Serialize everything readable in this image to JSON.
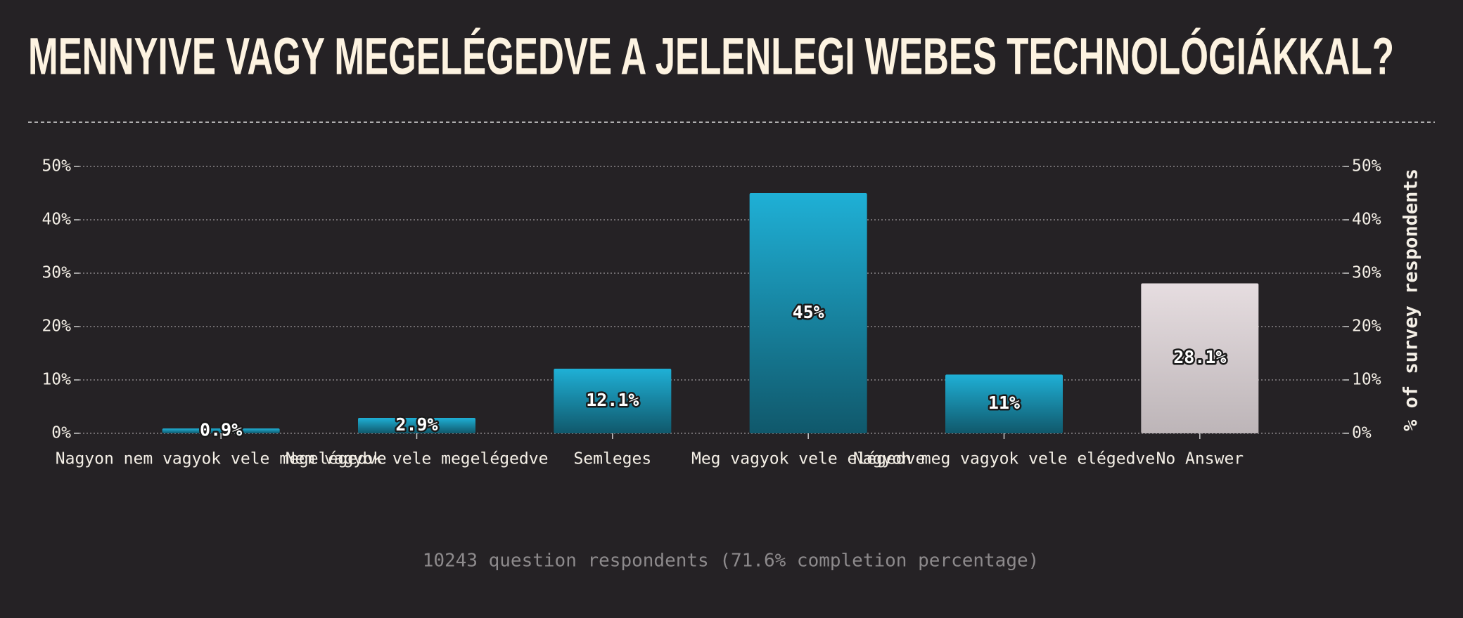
{
  "chart_data": {
    "type": "bar",
    "title": "MENNYIVE VAGY MEGELÉGEDVE A JELENLEGI WEBES TECHNOLÓGIÁKKAL?",
    "categories": [
      "Nagyon nem vagyok vele megelégedve",
      "Nem vagyok vele megelégedve",
      "Semleges",
      "Meg vagyok vele elégedve",
      "Nagyon meg vagyok vele elégedve",
      "No Answer"
    ],
    "values": [
      0.9,
      2.9,
      12.1,
      45,
      11,
      28.1
    ],
    "value_labels": [
      "0.9%",
      "2.9%",
      "12.1%",
      "45%",
      "11%",
      "28.1%"
    ],
    "colors": [
      "#1fb0d6",
      "#1fb0d6",
      "#1fb0d6",
      "#1fb0d6",
      "#1fb0d6",
      "#e6dde0"
    ],
    "ylim": [
      0,
      50
    ],
    "yticks": [
      {
        "value": 0,
        "label": "0%"
      },
      {
        "value": 10,
        "label": "10%"
      },
      {
        "value": 20,
        "label": "20%"
      },
      {
        "value": 30,
        "label": "30%"
      },
      {
        "value": 40,
        "label": "40%"
      },
      {
        "value": 50,
        "label": "50%"
      }
    ],
    "y_axis_label": "% of survey respondents",
    "grid": true,
    "footer": "10243 question respondents (71.6% completion percentage)"
  }
}
